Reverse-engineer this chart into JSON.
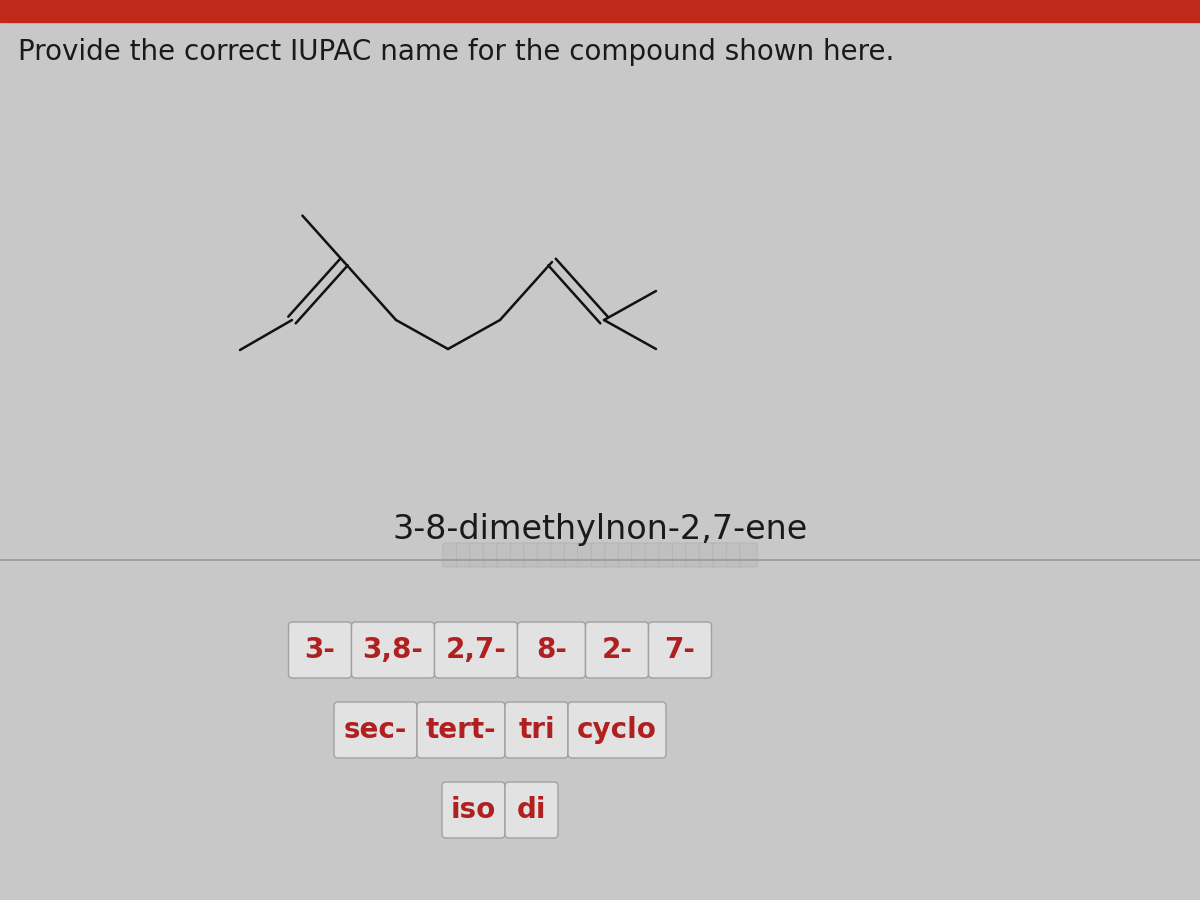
{
  "title": "Provide the correct IUPAC name for the compound shown here.",
  "title_fontsize": 20,
  "title_color": "#1a1a1a",
  "background_color": "#c8c8c8",
  "top_bar_color": "#c0281a",
  "answer_text": "3-8-dimethylnon-2,7-ene",
  "answer_fontsize": 24,
  "answer_color": "#1a1a1a",
  "button_rows": [
    [
      "3-",
      "3,8-",
      "2,7-",
      "8-",
      "2-",
      "7-"
    ],
    [
      "sec-",
      "tert-",
      "tri",
      "cyclo"
    ],
    [
      "iso",
      "di"
    ]
  ],
  "button_color": "#b02020",
  "button_bg": "#e2e2e2",
  "button_fontsize": 20,
  "divider_color": "#999999",
  "mol_color": "#111111",
  "mol_lw": 1.8
}
